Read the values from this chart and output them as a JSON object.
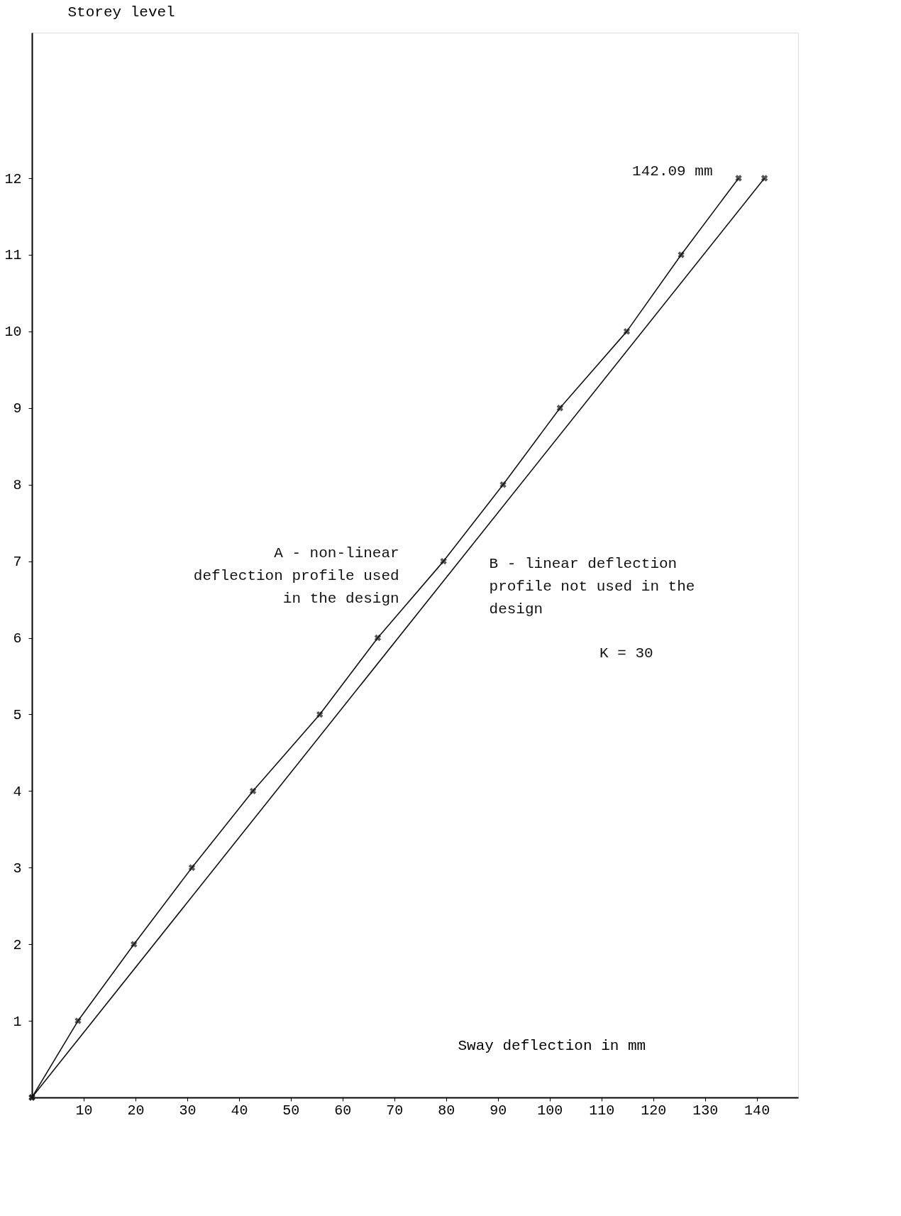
{
  "chart_data": {
    "type": "line",
    "xlabel": "Sway deflection in mm",
    "ylabel": "Storey level",
    "series": [
      {
        "name": "A - non-linear deflection profile used in the design",
        "color": "#111111",
        "marker": "cross",
        "x": [
          0,
          8.9,
          19.7,
          30.9,
          42.7,
          55.6,
          66.8,
          79.5,
          91,
          102,
          114.9,
          125.4,
          136.5
        ],
        "values": [
          0,
          1,
          2,
          3,
          4,
          5,
          6,
          7,
          8,
          9,
          10,
          11,
          12
        ]
      },
      {
        "name": "B - linear deflection profile not used in the design",
        "color": "#111111",
        "marker": "cross",
        "x": [
          0,
          141.5
        ],
        "values": [
          0,
          12
        ]
      }
    ],
    "xlim": [
      0,
      148
    ],
    "xticks": [
      10,
      20,
      30,
      40,
      50,
      60,
      70,
      80,
      90,
      100,
      110,
      120,
      130,
      140
    ],
    "ylim": [
      0,
      13.9
    ],
    "yticks": [
      1,
      2,
      3,
      4,
      5,
      6,
      7,
      8,
      9,
      10,
      11,
      12
    ],
    "annotations": [
      "142.09 mm",
      "K = 30"
    ],
    "grid": false,
    "legend": false
  }
}
